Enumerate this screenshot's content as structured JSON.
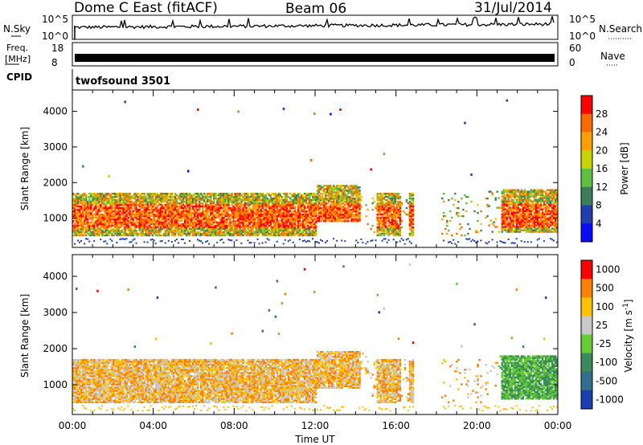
{
  "header": {
    "station": "Dome C East (fitACF)",
    "beam": "Beam 06",
    "date": "31/Jul/2014"
  },
  "sky_panel": {
    "left_label": "N.Sky",
    "left_ticks": [
      "10^5",
      "10^0"
    ],
    "right_label": "N.Search",
    "right_ticks": [
      "10^5",
      "10^0"
    ]
  },
  "freq_panel": {
    "left_label_1": "Freq.",
    "left_label_2": "[MHz]",
    "left_ticks": [
      "18",
      "8"
    ],
    "right_label": "Nave",
    "right_ticks": [
      "60",
      "0"
    ]
  },
  "cpid": {
    "label": "CPID",
    "value": "twofsound 3501"
  },
  "colors": {
    "power_scale": [
      "#0a0aff",
      "#1f3fb0",
      "#3a7f5a",
      "#5fbf3f",
      "#c8d400",
      "#ffa000",
      "#ff6a00",
      "#ff0000"
    ],
    "velocity_scale": [
      "#1a3fb0",
      "#2f6f8f",
      "#3a8a5a",
      "#66cc33",
      "#c8c8c8",
      "#ffc000",
      "#ff8000",
      "#ff0000"
    ]
  },
  "chart_data": [
    {
      "type": "heatmap",
      "name": "power_panel",
      "ylabel": "Slant Range [km]",
      "xlabel": "",
      "xlim": [
        0,
        24
      ],
      "ylim": [
        180,
        4600
      ],
      "yticks": [
        "4000",
        "3000",
        "2000",
        "1000"
      ],
      "yticks_values": [
        4000,
        3000,
        2000,
        1000
      ],
      "colorbar": {
        "label": "Power [dB]",
        "ticks": [
          "28",
          "24",
          "20",
          "16",
          "12",
          "8",
          "4"
        ]
      }
    },
    {
      "type": "heatmap",
      "name": "velocity_panel",
      "ylabel": "Slant Range [km]",
      "xlabel": "Time UT",
      "xlim": [
        0,
        24
      ],
      "ylim": [
        180,
        4600
      ],
      "yticks": [
        "4000",
        "3000",
        "2000",
        "1000"
      ],
      "yticks_values": [
        4000,
        3000,
        2000,
        1000
      ],
      "xticks": [
        "00:00",
        "04:00",
        "08:00",
        "12:00",
        "16:00",
        "20:00",
        "00:00"
      ],
      "xticks_values": [
        0,
        4,
        8,
        12,
        16,
        20,
        24
      ],
      "colorbar": {
        "label": "Velocity [m s",
        "label_sup": "-1",
        "label_end": "]",
        "ticks": [
          "1000",
          "500",
          "100",
          "25",
          "-25",
          "-100",
          "-500",
          "-1000"
        ]
      }
    }
  ]
}
